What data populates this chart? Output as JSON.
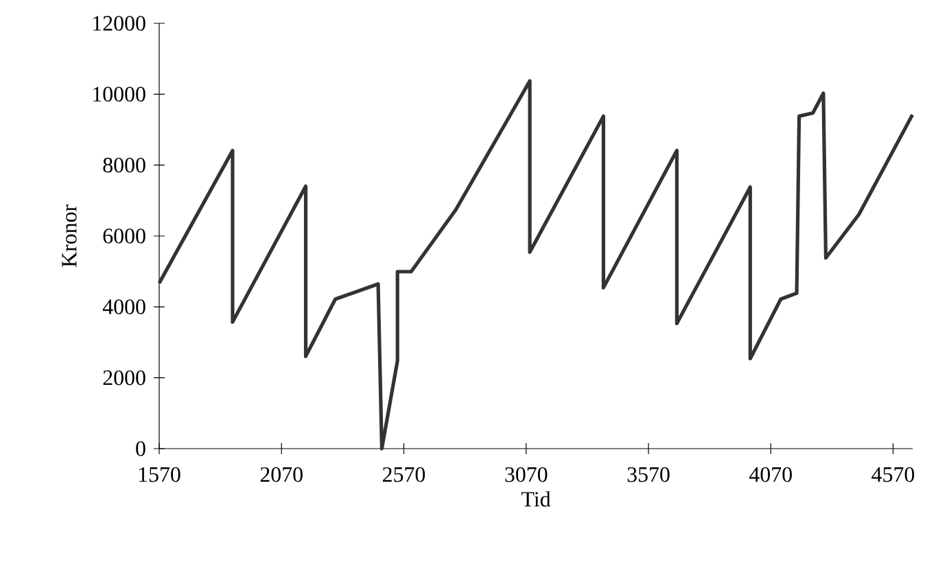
{
  "chart_data": {
    "type": "line",
    "xlabel": "Tid",
    "ylabel": "Kronor",
    "xlim": [
      1570,
      4650
    ],
    "ylim": [
      0,
      12000
    ],
    "xticks": [
      1570,
      2070,
      2570,
      3070,
      3570,
      4070,
      4570
    ],
    "yticks": [
      0,
      2000,
      4000,
      6000,
      8000,
      10000,
      12000
    ],
    "series": [
      {
        "color": "#333333",
        "x": [
          1570,
          1870,
          1870,
          2169,
          2169,
          2290,
          2465,
          2480,
          2544,
          2544,
          2600,
          2782,
          3085,
          3085,
          3386,
          3386,
          3686,
          3686,
          3986,
          3986,
          4111,
          4176,
          4186,
          4242,
          4285,
          4295,
          4430,
          4649
        ],
        "values": [
          4670,
          8410,
          3573,
          7405,
          2605,
          4219,
          4645,
          0,
          2477,
          4993,
          4993,
          6735,
          10374,
          5547,
          9380,
          4541,
          8412,
          3534,
          7378,
          2540,
          4219,
          4386,
          9380,
          9470,
          10026,
          5380,
          6604,
          9418
        ]
      }
    ]
  }
}
